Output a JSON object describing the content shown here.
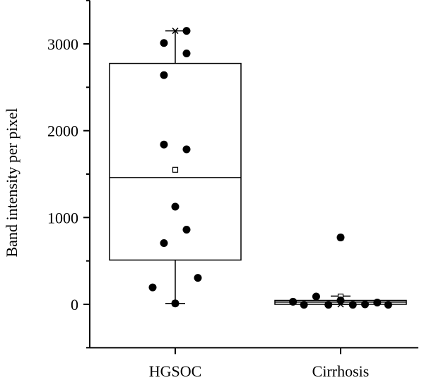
{
  "chart_data": {
    "type": "box",
    "title": "",
    "xlabel": "",
    "ylabel": "Band intensity per pixel",
    "ylim": [
      -500,
      3500
    ],
    "yticks": [
      0,
      1000,
      2000,
      3000
    ],
    "grid": false,
    "categories": [
      "HGSOC",
      "Cirrhosis"
    ],
    "boxes": [
      {
        "category": "HGSOC",
        "q1": 510,
        "median": 1460,
        "q3": 2775,
        "whisker_low": 10,
        "whisker_high": 3150,
        "mean": 1550,
        "max_marker": 3150,
        "min_marker": 10,
        "points": [
          {
            "offset": -0.5,
            "value": 195
          },
          {
            "offset": -0.25,
            "value": 3010
          },
          {
            "offset": -0.25,
            "value": 2640
          },
          {
            "offset": -0.25,
            "value": 1840
          },
          {
            "offset": -0.25,
            "value": 705
          },
          {
            "offset": 0,
            "value": 1125
          },
          {
            "offset": 0,
            "value": 10
          },
          {
            "offset": 0.25,
            "value": 3150
          },
          {
            "offset": 0.25,
            "value": 2890
          },
          {
            "offset": 0.25,
            "value": 1785
          },
          {
            "offset": 0.25,
            "value": 860
          },
          {
            "offset": 0.5,
            "value": 305
          }
        ]
      },
      {
        "category": "Cirrhosis",
        "q1": 0,
        "median": 25,
        "q3": 45,
        "whisker_low": 0,
        "whisker_high": 95,
        "mean": 90,
        "max_marker": 770,
        "min_marker": 0,
        "points": [
          {
            "offset": -0.78,
            "value": 30
          },
          {
            "offset": -0.6,
            "value": -5
          },
          {
            "offset": -0.4,
            "value": 90
          },
          {
            "offset": -0.2,
            "value": -5
          },
          {
            "offset": 0,
            "value": 770
          },
          {
            "offset": 0,
            "value": 45
          },
          {
            "offset": 0.2,
            "value": -5
          },
          {
            "offset": 0.4,
            "value": 0
          },
          {
            "offset": 0.6,
            "value": 20
          },
          {
            "offset": 0.78,
            "value": -5
          }
        ]
      }
    ]
  }
}
